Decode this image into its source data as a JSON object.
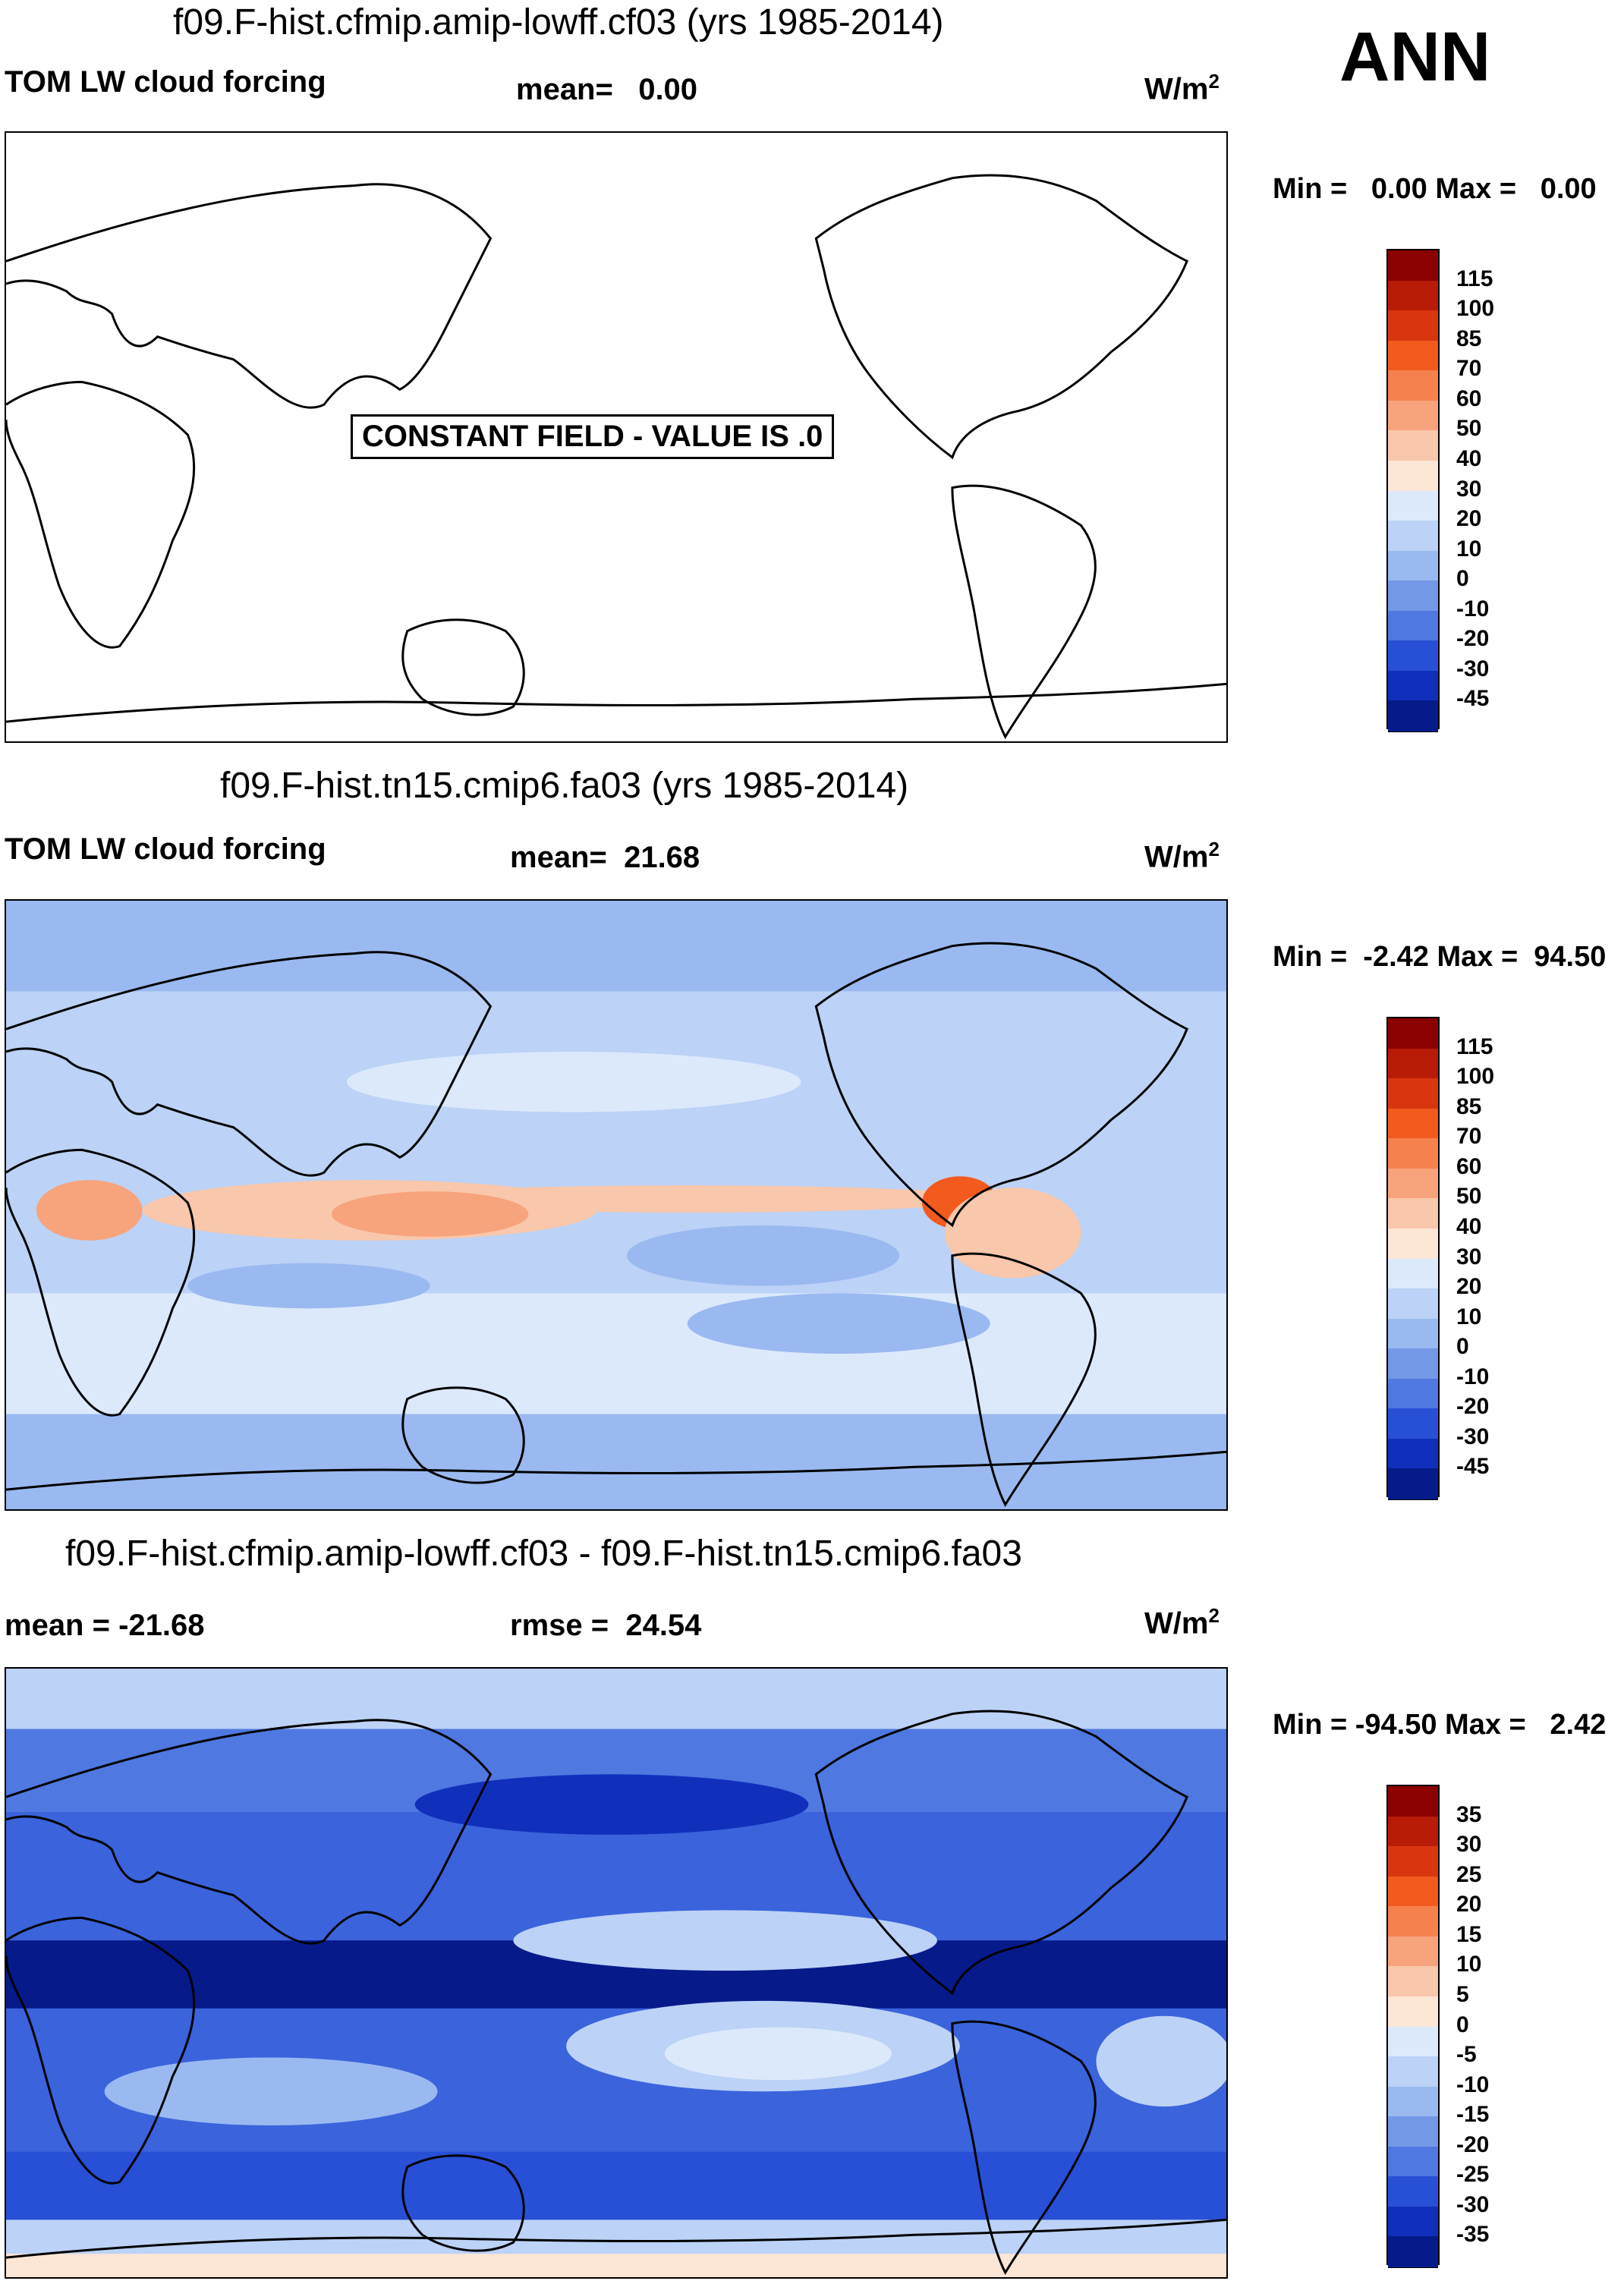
{
  "season": "ANN",
  "panels": [
    {
      "title": "f09.F-hist.cfmip.amip-lowff.cf03 (yrs 1985-2014)",
      "left_label": "TOM LW cloud forcing",
      "center_label": "mean=   0.00",
      "units": "W/m",
      "units_sup": "2",
      "minmax": "Min =   0.00 Max =   0.00",
      "overlay_text": "CONSTANT FIELD - VALUE IS .0",
      "levels": [
        "115",
        "100",
        "85",
        "70",
        "60",
        "50",
        "40",
        "30",
        "20",
        "10",
        "0",
        "-10",
        "-20",
        "-30",
        "-45"
      ]
    },
    {
      "title": "f09.F-hist.tn15.cmip6.fa03 (yrs 1985-2014)",
      "left_label": "TOM LW cloud forcing",
      "center_label": "mean=  21.68",
      "units": "W/m",
      "units_sup": "2",
      "minmax": "Min =  -2.42 Max =  94.50",
      "levels": [
        "115",
        "100",
        "85",
        "70",
        "60",
        "50",
        "40",
        "30",
        "20",
        "10",
        "0",
        "-10",
        "-20",
        "-30",
        "-45"
      ]
    },
    {
      "title": "f09.F-hist.cfmip.amip-lowff.cf03 - f09.F-hist.tn15.cmip6.fa03",
      "left_label": "mean = -21.68",
      "center_label": "rmse =  24.54",
      "units": "W/m",
      "units_sup": "2",
      "minmax": "Min = -94.50 Max =   2.42",
      "levels": [
        "35",
        "30",
        "25",
        "20",
        "15",
        "10",
        "5",
        "0",
        "-5",
        "-10",
        "-15",
        "-20",
        "-25",
        "-30",
        "-35"
      ]
    }
  ],
  "colors": {
    "scale": [
      "#8b0000",
      "#b81c06",
      "#d9360f",
      "#f25a1e",
      "#f5814e",
      "#f7a37c",
      "#f9c7ab",
      "#fce6d6",
      "#dce9fb",
      "#bcd2f6",
      "#9ab9f0",
      "#7399e6",
      "#4f78e0",
      "#2850d6",
      "#1030bc",
      "#061a8a"
    ],
    "ocean_base_mid": "#bcd2f6",
    "ocean_base_diff": "#3a63dc"
  }
}
